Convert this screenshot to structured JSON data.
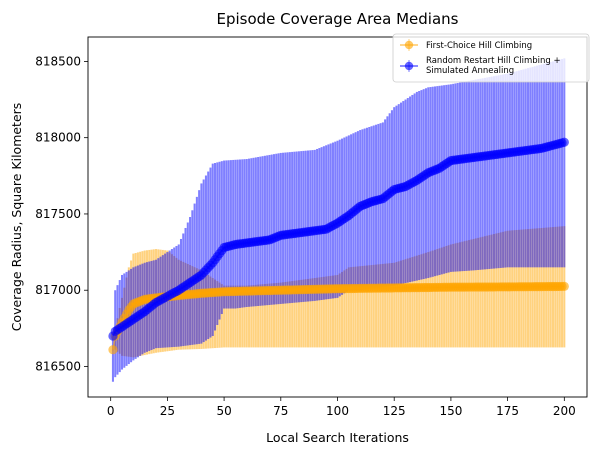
{
  "chart_data": {
    "type": "line",
    "title": "Episode Coverage Area Medians",
    "xlabel": "Local Search Iterations",
    "ylabel": "Coverage Radius, Square Kilometers",
    "xlim": [
      -10,
      210
    ],
    "ylim": [
      816300,
      818660
    ],
    "xticks": [
      0,
      25,
      50,
      75,
      100,
      125,
      150,
      175,
      200
    ],
    "yticks": [
      816500,
      817000,
      817500,
      818000,
      818500
    ],
    "error_bars": "vertical range bars",
    "legend_position": "top-right",
    "series": [
      {
        "name": "First-Choice Hill Climbing",
        "color": "#ffa500",
        "knots": {
          "x": [
            1,
            2,
            5,
            8,
            10,
            15,
            20,
            30,
            40,
            50,
            75,
            100,
            125,
            150,
            175,
            200
          ],
          "y": [
            816610,
            816700,
            816790,
            816870,
            816910,
            816940,
            816950,
            816965,
            816980,
            816990,
            817000,
            817010,
            817015,
            817020,
            817022,
            817025
          ]
        },
        "band_low": {
          "x": [
            1,
            2,
            5,
            10,
            20,
            30,
            40,
            45,
            50,
            100,
            150,
            200
          ],
          "y": [
            816610,
            816610,
            816570,
            816560,
            816590,
            816610,
            816615,
            816620,
            816625,
            816625,
            816625,
            816625
          ]
        },
        "band_high": {
          "x": [
            1,
            2,
            5,
            8,
            10,
            15,
            20,
            25,
            30,
            40,
            50,
            60,
            75,
            100,
            105,
            125,
            140,
            150,
            175,
            200
          ],
          "y": [
            816610,
            816750,
            816950,
            817150,
            817240,
            817260,
            817270,
            817260,
            817200,
            817130,
            817030,
            817030,
            817050,
            817100,
            817150,
            817180,
            817250,
            817300,
            817390,
            817420
          ]
        }
      },
      {
        "name": "Random Restart Hill Climbing + Simulated Annealing",
        "color": "#0000ff",
        "knots": {
          "x": [
            1,
            2,
            5,
            10,
            15,
            20,
            25,
            30,
            35,
            40,
            45,
            50,
            55,
            60,
            65,
            70,
            75,
            80,
            85,
            90,
            95,
            100,
            105,
            110,
            115,
            120,
            125,
            130,
            135,
            140,
            145,
            150,
            155,
            160,
            165,
            170,
            175,
            180,
            185,
            190,
            195,
            200
          ],
          "y": [
            816700,
            816730,
            816760,
            816810,
            816860,
            816920,
            816960,
            817000,
            817050,
            817100,
            817180,
            817280,
            817300,
            817310,
            817320,
            817330,
            817360,
            817370,
            817380,
            817390,
            817400,
            817440,
            817490,
            817550,
            817580,
            817600,
            817660,
            817680,
            817720,
            817770,
            817800,
            817850,
            817860,
            817870,
            817880,
            817890,
            817900,
            817910,
            817920,
            817930,
            817950,
            817970
          ]
        },
        "band_low": {
          "x": [
            1,
            2,
            5,
            10,
            15,
            20,
            30,
            40,
            45,
            50,
            55,
            60,
            75,
            90,
            100,
            105,
            110,
            125,
            140,
            150,
            160,
            175,
            200
          ],
          "y": [
            816400,
            816430,
            816480,
            816540,
            816590,
            816620,
            816630,
            816650,
            816700,
            816880,
            816880,
            816890,
            816910,
            816930,
            816950,
            817000,
            817000,
            817030,
            817080,
            817120,
            817130,
            817150,
            817150
          ]
        },
        "band_high": {
          "x": [
            1,
            2,
            5,
            10,
            15,
            20,
            25,
            30,
            35,
            40,
            45,
            50,
            60,
            75,
            90,
            100,
            110,
            120,
            125,
            130,
            135,
            140,
            150,
            175,
            200
          ],
          "y": [
            816700,
            817000,
            817100,
            817150,
            817180,
            817200,
            817250,
            817300,
            817480,
            817700,
            817830,
            817850,
            817860,
            817900,
            817920,
            817980,
            818050,
            818100,
            818200,
            818250,
            818300,
            818330,
            818350,
            818420,
            818520
          ]
        }
      }
    ]
  }
}
